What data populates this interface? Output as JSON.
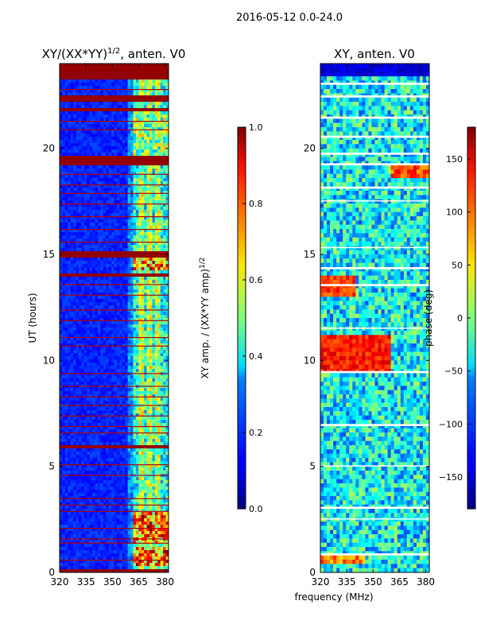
{
  "figure_title": "2016-05-12 0.0-24.0",
  "chart_data": [
    {
      "type": "heatmap",
      "title_main": "XY/(XX*YY)",
      "title_exp": "1/2",
      "title_rest": ", anten. V0",
      "xlabel": "",
      "ylabel": "UT (hours)",
      "xlim": [
        320,
        382
      ],
      "ylim": [
        0,
        24
      ],
      "xticks": [
        320,
        335,
        350,
        365,
        380
      ],
      "yticks": [
        0,
        5,
        10,
        15,
        20
      ],
      "colorbar": {
        "label_main": "XY amp. / (XX*YY amp)",
        "label_exp": "1/2",
        "min": 0.0,
        "max": 1.0,
        "ticks": [
          "0.0",
          "0.2",
          "0.4",
          "0.6",
          "0.8",
          "1.0"
        ],
        "tick_values": [
          0.0,
          0.2,
          0.4,
          0.6,
          0.8,
          1.0
        ]
      }
    },
    {
      "type": "heatmap",
      "title": "XY, anten. V0",
      "xlabel": "frequency (MHz)",
      "ylabel": "",
      "xlim": [
        320,
        382
      ],
      "ylim": [
        0,
        24
      ],
      "xticks": [
        320,
        335,
        350,
        365,
        380
      ],
      "yticks": [
        0,
        5,
        10,
        15,
        20
      ],
      "colorbar": {
        "label": "phase (deg)",
        "min": -180,
        "max": 180,
        "ticks": [
          "150",
          "100",
          "50",
          "0",
          "−50",
          "−100",
          "−150"
        ],
        "tick_values": [
          150,
          100,
          50,
          0,
          -50,
          -100,
          -150
        ]
      }
    }
  ]
}
